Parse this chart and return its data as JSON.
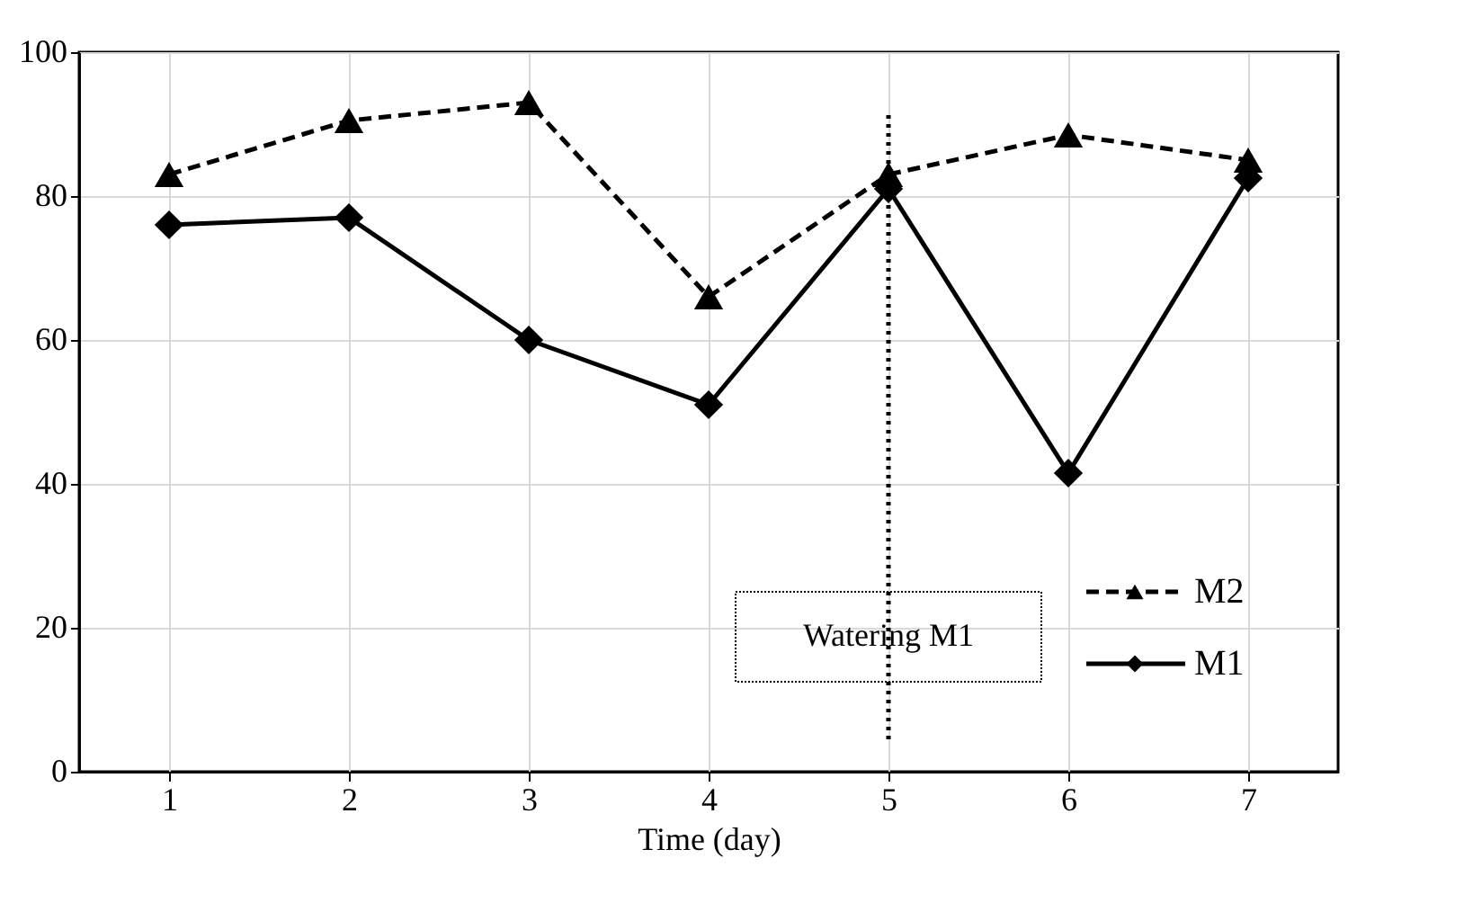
{
  "chart_data": {
    "type": "line",
    "xlabel": "Time  (day)",
    "x": [
      1,
      2,
      3,
      4,
      5,
      6,
      7
    ],
    "series": [
      {
        "name": "M2",
        "color": "#000000",
        "marker": "triangle",
        "line_style": "dashed",
        "values": [
          83,
          90.5,
          93,
          66,
          83,
          88.5,
          85
        ]
      },
      {
        "name": "M1",
        "color": "#000000",
        "marker": "diamond",
        "line_style": "solid",
        "values": [
          76,
          77,
          60,
          51,
          81,
          41.5,
          82.5
        ]
      }
    ],
    "xlim": [
      0.5,
      7.5
    ],
    "xticks": [
      1,
      2,
      3,
      4,
      5,
      6,
      7
    ],
    "ylim": [
      0,
      100
    ],
    "yticks": [
      0,
      20,
      40,
      60,
      80,
      100
    ],
    "grid": true,
    "legend": "bottom right",
    "ref_lines": [
      {
        "axis": "x",
        "value": 5,
        "label": "Watering  M1",
        "line_style": "dotted",
        "color": "#000000"
      }
    ]
  }
}
